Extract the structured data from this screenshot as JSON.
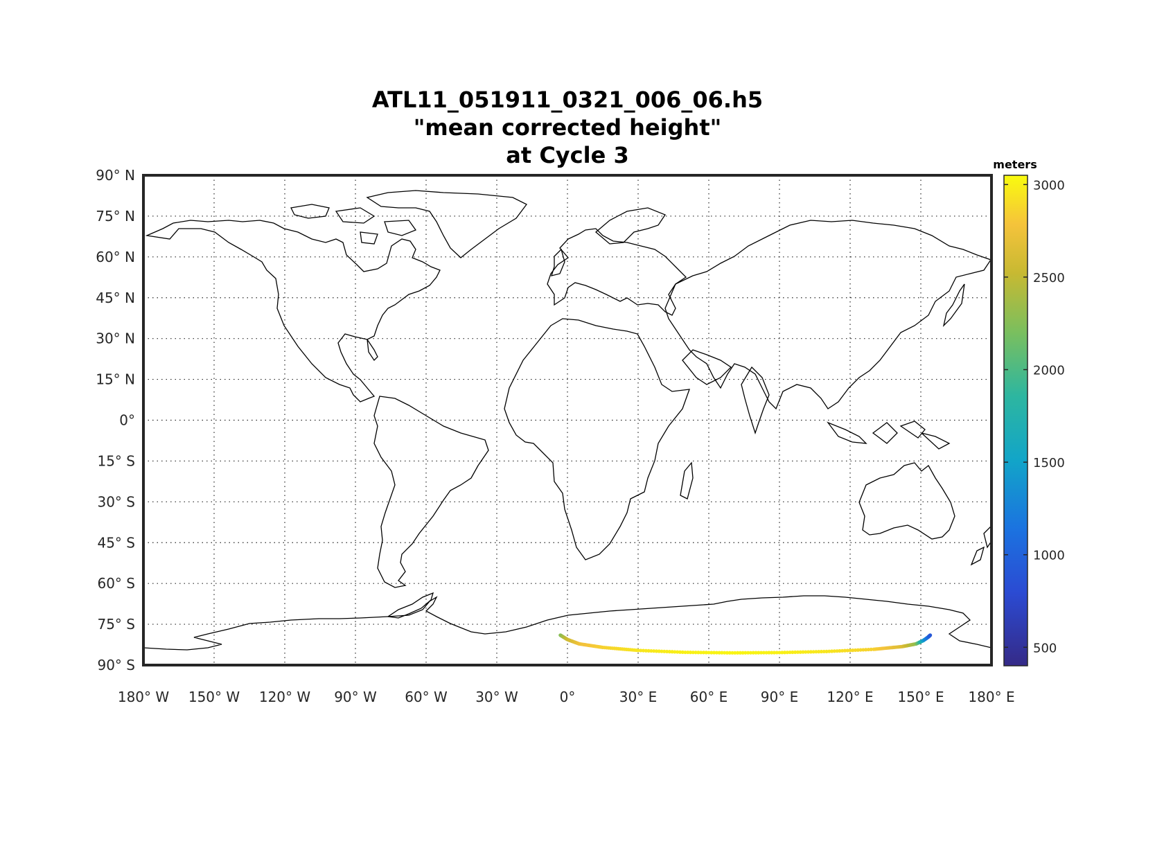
{
  "title": {
    "line1": "ATL11_051911_0321_006_06.h5",
    "line2": "\"mean corrected height\"",
    "line3": "at Cycle 3"
  },
  "map": {
    "projection": "equirectangular",
    "lon_range": [
      -180,
      180
    ],
    "lat_range": [
      -90,
      90
    ],
    "grid": "dotted",
    "lon_tick_labels": [
      {
        "lon": -180,
        "label": "180° W"
      },
      {
        "lon": -150,
        "label": "150° W"
      },
      {
        "lon": -120,
        "label": "120° W"
      },
      {
        "lon": -90,
        "label": "90° W"
      },
      {
        "lon": -60,
        "label": "60° W"
      },
      {
        "lon": -30,
        "label": "30° W"
      },
      {
        "lon": 0,
        "label": "0°"
      },
      {
        "lon": 30,
        "label": "30° E"
      },
      {
        "lon": 60,
        "label": "60° E"
      },
      {
        "lon": 90,
        "label": "90° E"
      },
      {
        "lon": 120,
        "label": "120° E"
      },
      {
        "lon": 150,
        "label": "150° E"
      },
      {
        "lon": 180,
        "label": "180° E"
      }
    ],
    "lat_tick_labels": [
      {
        "lat": 90,
        "label": "90° N"
      },
      {
        "lat": 75,
        "label": "75° N"
      },
      {
        "lat": 60,
        "label": "60° N"
      },
      {
        "lat": 45,
        "label": "45° N"
      },
      {
        "lat": 30,
        "label": "30° N"
      },
      {
        "lat": 15,
        "label": "15° N"
      },
      {
        "lat": 0,
        "label": "0°"
      },
      {
        "lat": -15,
        "label": "15° S"
      },
      {
        "lat": -30,
        "label": "30° S"
      },
      {
        "lat": -45,
        "label": "45° S"
      },
      {
        "lat": -60,
        "label": "60° S"
      },
      {
        "lat": -75,
        "label": "75° S"
      },
      {
        "lat": -90,
        "label": "90° S"
      }
    ]
  },
  "chart_data": {
    "type": "scatter",
    "description_of_track": "ICESat-2 ATL11 ground track over Antarctica colored by mean corrected height",
    "colorbar": {
      "label": "meters",
      "range": [
        400,
        3050
      ],
      "ticks": [
        500,
        1000,
        1500,
        2000,
        2500,
        3000
      ],
      "colormap": "parula"
    },
    "track": [
      {
        "lon": -3,
        "lat": -79.0,
        "h": 2250
      },
      {
        "lon": 0,
        "lat": -80.6,
        "h": 2550
      },
      {
        "lon": 5,
        "lat": -82.2,
        "h": 2750
      },
      {
        "lon": 15,
        "lat": -83.5,
        "h": 2850
      },
      {
        "lon": 30,
        "lat": -84.6,
        "h": 2950
      },
      {
        "lon": 50,
        "lat": -85.3,
        "h": 3000
      },
      {
        "lon": 70,
        "lat": -85.5,
        "h": 3020
      },
      {
        "lon": 90,
        "lat": -85.4,
        "h": 3000
      },
      {
        "lon": 110,
        "lat": -85.0,
        "h": 2950
      },
      {
        "lon": 130,
        "lat": -84.2,
        "h": 2850
      },
      {
        "lon": 142,
        "lat": -83.2,
        "h": 2650
      },
      {
        "lon": 148,
        "lat": -82.2,
        "h": 2300
      },
      {
        "lon": 151,
        "lat": -81.0,
        "h": 1500
      },
      {
        "lon": 153,
        "lat": -79.8,
        "h": 1100
      },
      {
        "lon": 154,
        "lat": -79.0,
        "h": 900
      }
    ]
  }
}
